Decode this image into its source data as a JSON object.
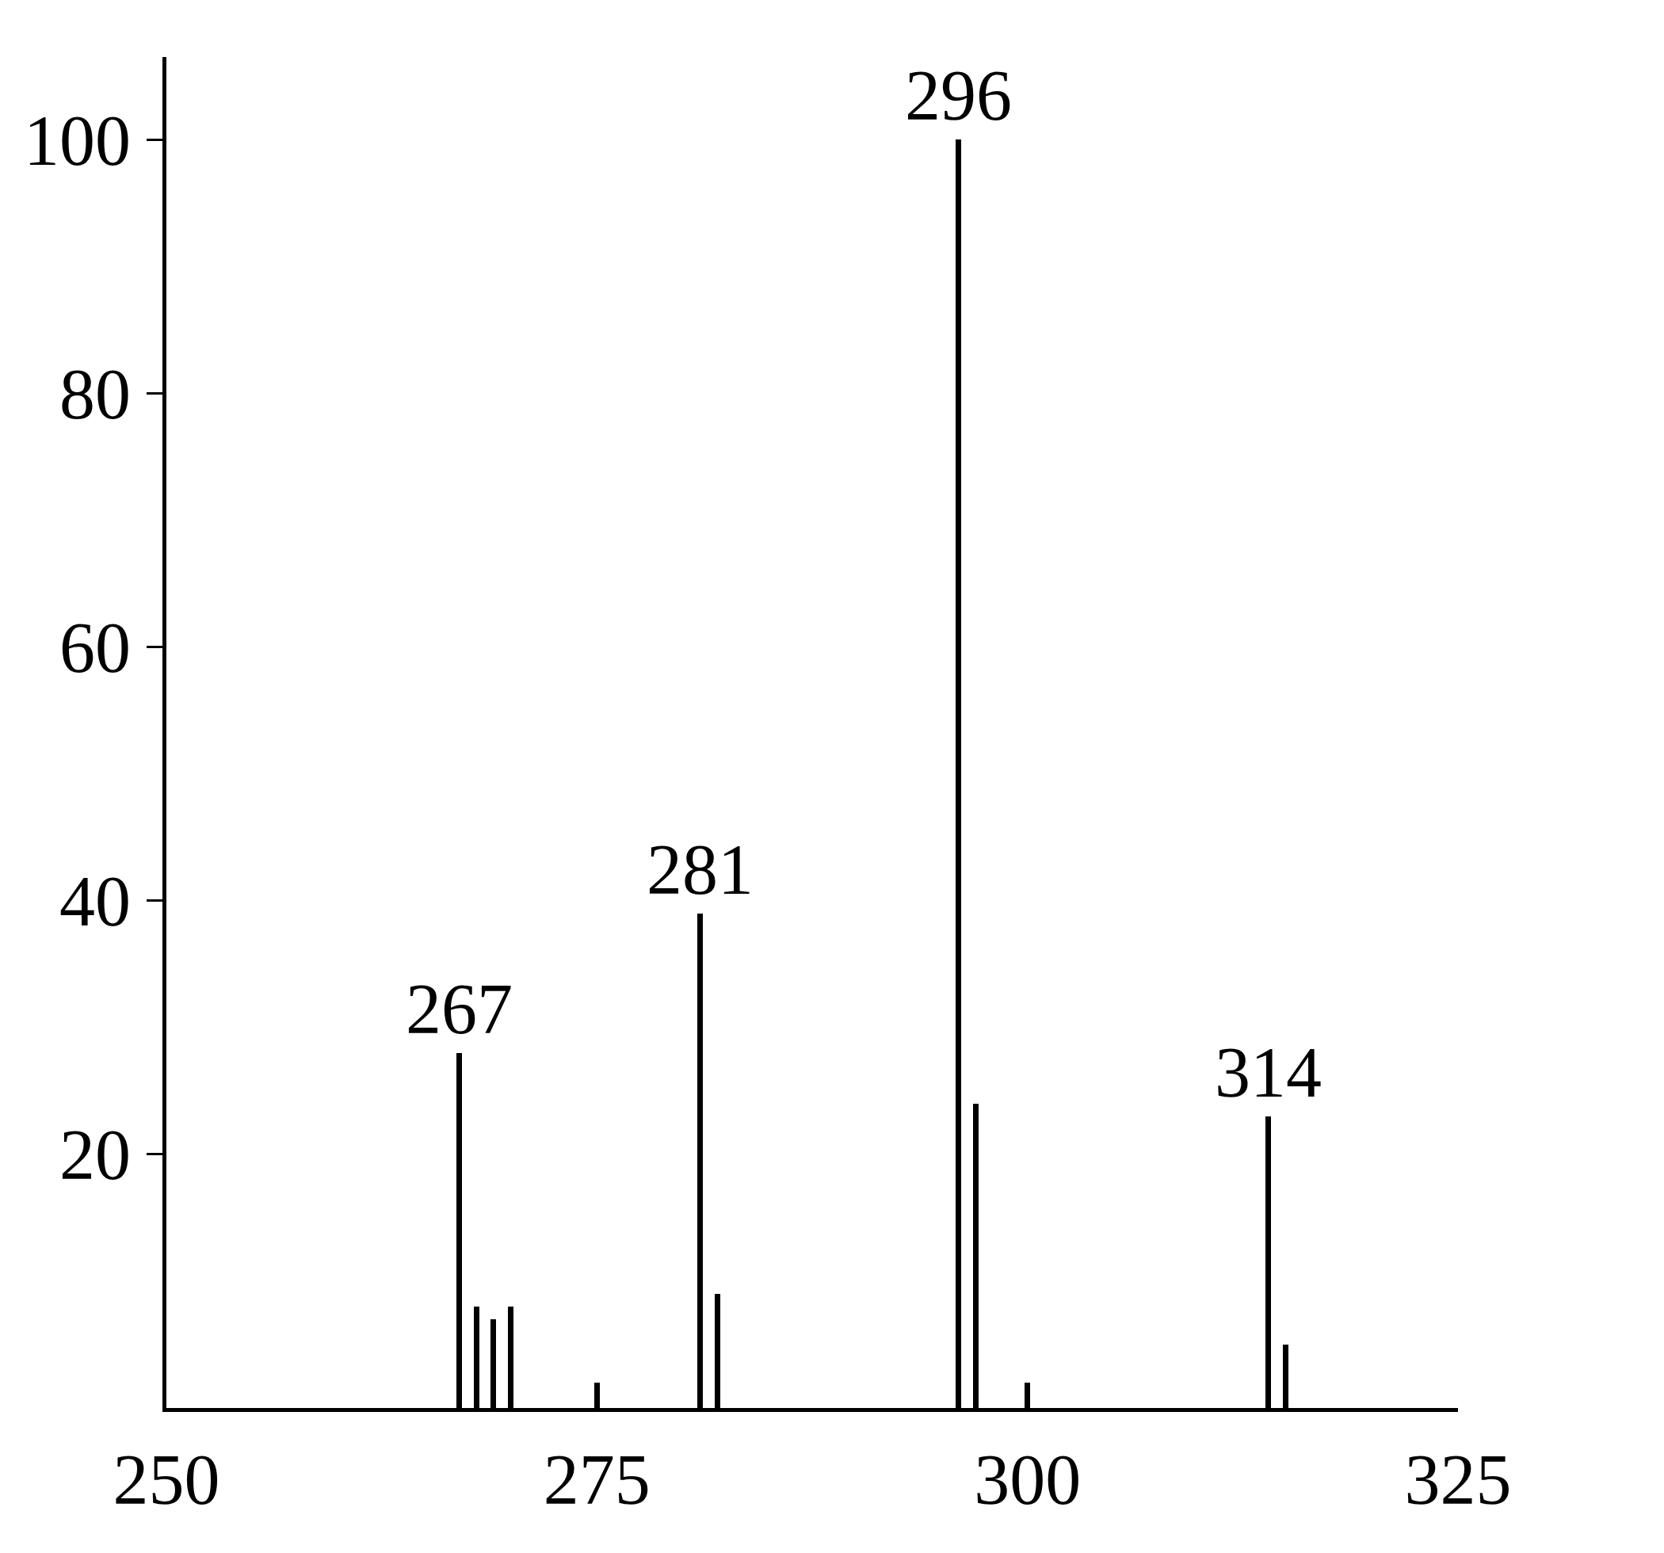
{
  "chart_data": {
    "type": "bar",
    "x": [
      267,
      268,
      269,
      270,
      275,
      281,
      282,
      296,
      297,
      300,
      314,
      315
    ],
    "values": [
      28,
      8,
      7,
      8,
      2,
      39,
      9,
      100,
      24,
      2,
      23,
      5
    ],
    "color": "#000000",
    "xlim": [
      250,
      325
    ],
    "ylim": [
      0,
      106.5
    ],
    "xticks": [
      250,
      275,
      300,
      325
    ],
    "yticks": [
      20,
      40,
      60,
      80,
      100
    ],
    "grid": false,
    "annotations": [
      {
        "text": "267",
        "x": 267,
        "y": 28
      },
      {
        "text": "281",
        "x": 281,
        "y": 39
      },
      {
        "text": "296",
        "x": 296,
        "y": 100
      },
      {
        "text": "314",
        "x": 314,
        "y": 23
      }
    ]
  }
}
